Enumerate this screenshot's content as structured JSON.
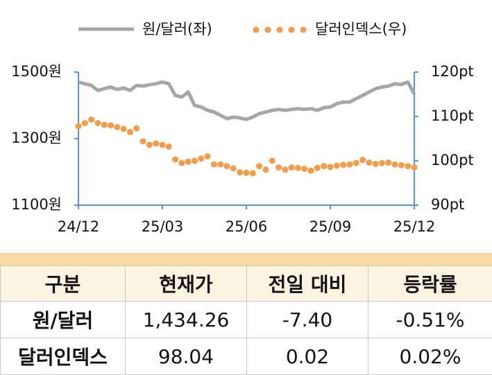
{
  "chart_data": {
    "type": "line",
    "categories": [
      "24/12",
      null,
      null,
      null,
      null,
      null,
      null,
      null,
      null,
      null,
      null,
      null,
      null,
      "25/03",
      null,
      null,
      null,
      null,
      null,
      null,
      null,
      null,
      null,
      null,
      null,
      null,
      "25/06",
      null,
      null,
      null,
      null,
      null,
      null,
      null,
      null,
      null,
      null,
      null,
      null,
      "25/09",
      null,
      null,
      null,
      null,
      null,
      null,
      null,
      null,
      null,
      null,
      null,
      null,
      "25/12"
    ],
    "series": [
      {
        "name": "원/달러(좌)",
        "color": "#a6a6a6",
        "style": "line",
        "axis": "y",
        "values": [
          1470,
          1465,
          1460,
          1445,
          1450,
          1455,
          1448,
          1452,
          1445,
          1460,
          1458,
          1462,
          1465,
          1470,
          1465,
          1430,
          1425,
          1440,
          1400,
          1395,
          1385,
          1380,
          1370,
          1360,
          1365,
          1362,
          1358,
          1365,
          1375,
          1380,
          1385,
          1388,
          1385,
          1388,
          1390,
          1388,
          1390,
          1385,
          1393,
          1395,
          1405,
          1410,
          1410,
          1420,
          1430,
          1440,
          1450,
          1455,
          1458,
          1465,
          1463,
          1470,
          1434
        ]
      },
      {
        "name": "달러인덱스(우)",
        "color": "#f39c4a",
        "style": "dots",
        "axis": "y2",
        "values": [
          107.8,
          108.5,
          109.3,
          108.5,
          108.1,
          108.0,
          107.6,
          107.2,
          106.5,
          107.3,
          104.4,
          103.6,
          103.9,
          103.6,
          103.2,
          100.3,
          99.5,
          99.8,
          100.0,
          100.5,
          101.0,
          99.2,
          99.2,
          98.8,
          98.3,
          97.4,
          97.3,
          97.2,
          98.8,
          98.0,
          100.0,
          98.5,
          98.0,
          98.5,
          98.4,
          98.2,
          97.8,
          98.4,
          98.8,
          98.6,
          98.9,
          99.1,
          99.2,
          99.5,
          100.2,
          99.6,
          99.3,
          99.5,
          99.6,
          99.2,
          99.0,
          98.8,
          98.5
        ]
      }
    ],
    "ylim": [
      1100,
      1500
    ],
    "yticks": [
      {
        "value": 1100,
        "label": "1100원"
      },
      {
        "value": 1300,
        "label": "1300원"
      },
      {
        "value": 1500,
        "label": "1500원"
      }
    ],
    "y2lim": [
      90,
      120
    ],
    "y2ticks": [
      {
        "value": 90,
        "label": "90pt"
      },
      {
        "value": 100,
        "label": "100pt"
      },
      {
        "value": 110,
        "label": "110pt"
      },
      {
        "value": 120,
        "label": "120pt"
      }
    ],
    "axis_color": "#5b8fd6"
  },
  "table": {
    "header": [
      "구분",
      "현재가",
      "전일 대비",
      "등락률"
    ],
    "rows": [
      [
        "원/달러",
        "1,434.26",
        "-7.40",
        "-0.51%"
      ],
      [
        "달러인덱스",
        "98.04",
        "0.02",
        "0.02%"
      ]
    ]
  }
}
